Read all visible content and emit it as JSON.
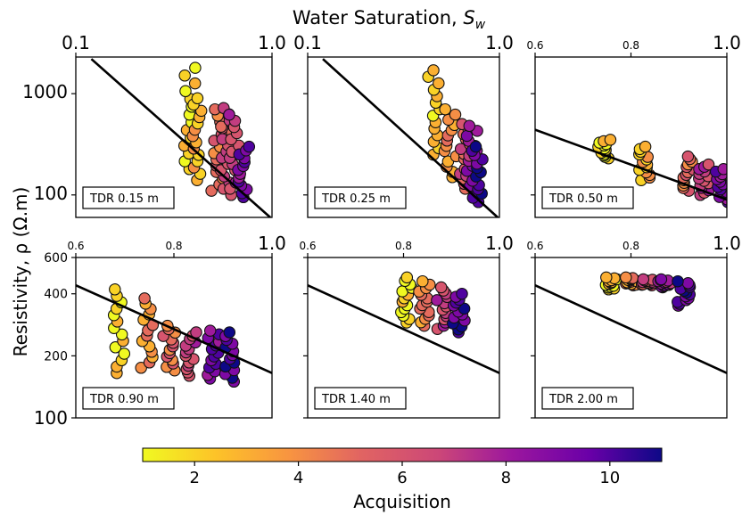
{
  "chart_data": {
    "type": "scatter",
    "top_axis_label": "Water Saturation, ",
    "top_axis_label_sym": "S",
    "top_axis_label_sub": "w",
    "ylabel": "Resistivity, ρ (Ω.m)",
    "colorbar": {
      "label": "Acquisition",
      "range": [
        1,
        11
      ],
      "ticks": [
        2,
        4,
        6,
        8,
        10
      ],
      "colormap": "plasma"
    },
    "panels": [
      {
        "label": "TDR 0.15 m",
        "x_scale": "log",
        "xlim": [
          0.1,
          1.0
        ],
        "x_ticks": [
          0.1,
          1.0
        ],
        "x_tick_labels": [
          "0.1",
          "1.0"
        ],
        "y_scale": "log",
        "ylim": [
          60,
          2300
        ],
        "y_ticks": [
          100,
          1000
        ],
        "y_tick_labels": [
          "100",
          "1000"
        ],
        "fit_line": [
          [
            0.12,
            2200
          ],
          [
            0.98,
            60
          ]
        ],
        "clusters": [
          {
            "x": 0.38,
            "y_min": 180,
            "y_max": 1800,
            "acq_start": 1
          },
          {
            "x": 0.42,
            "y_min": 140,
            "y_max": 900,
            "acq_start": 2
          },
          {
            "x": 0.525,
            "y_min": 110,
            "y_max": 700,
            "acq_start": 4
          },
          {
            "x": 0.59,
            "y_min": 115,
            "y_max": 720,
            "acq_start": 5
          },
          {
            "x": 0.65,
            "y_min": 100,
            "y_max": 620,
            "acq_start": 6
          },
          {
            "x": 0.72,
            "y_min": 95,
            "y_max": 300,
            "acq_start": 8
          }
        ]
      },
      {
        "label": "TDR 0.25 m",
        "x_scale": "log",
        "xlim": [
          0.1,
          1.0
        ],
        "x_ticks": [
          0.1,
          1.0
        ],
        "x_tick_labels": [
          "0.1",
          "1.0"
        ],
        "y_scale": "log",
        "ylim": [
          60,
          2300
        ],
        "y_ticks": [
          100,
          1000
        ],
        "y_tick_labels": [
          "",
          ""
        ],
        "fit_line": [
          [
            0.12,
            2200
          ],
          [
            0.98,
            60
          ]
        ],
        "clusters": [
          {
            "x": 0.455,
            "y_min": 250,
            "y_max": 1700,
            "acq_start": 1
          },
          {
            "x": 0.555,
            "y_min": 150,
            "y_max": 700,
            "acq_start": 3
          },
          {
            "x": 0.665,
            "y_min": 115,
            "y_max": 500,
            "acq_start": 5
          },
          {
            "x": 0.715,
            "y_min": 110,
            "y_max": 480,
            "acq_start": 7
          },
          {
            "x": 0.77,
            "y_min": 85,
            "y_max": 300,
            "acq_start": 9
          }
        ]
      },
      {
        "label": "TDR 0.50 m",
        "x_scale": "linear",
        "xlim": [
          0.6,
          1.0
        ],
        "x_ticks": [
          0.6,
          0.8,
          1.0
        ],
        "x_tick_labels": [
          "0.6",
          "0.8",
          "1.0"
        ],
        "y_scale": "log",
        "ylim": [
          60,
          2300
        ],
        "y_ticks": [
          100,
          1000
        ],
        "y_tick_labels": [
          "",
          ""
        ],
        "fit_line": [
          [
            0.6,
            440
          ],
          [
            1.0,
            90
          ]
        ],
        "clusters": [
          {
            "x": 0.745,
            "y_min": 230,
            "y_max": 350,
            "acq_start": 1
          },
          {
            "x": 0.83,
            "y_min": 140,
            "y_max": 300,
            "acq_start": 2
          },
          {
            "x": 0.92,
            "y_min": 110,
            "y_max": 240,
            "acq_start": 4
          },
          {
            "x": 0.955,
            "y_min": 100,
            "y_max": 200,
            "acq_start": 6
          },
          {
            "x": 0.99,
            "y_min": 85,
            "y_max": 180,
            "acq_start": 8
          }
        ]
      },
      {
        "label": "TDR 0.90 m",
        "x_scale": "linear",
        "xlim": [
          0.6,
          1.0
        ],
        "x_ticks": [
          0.6,
          0.8,
          1.0
        ],
        "x_tick_labels": [
          "0.6",
          "0.8",
          "1.0"
        ],
        "y_scale": "log",
        "ylim": [
          100,
          600
        ],
        "y_ticks": [
          100,
          200,
          400,
          600
        ],
        "y_tick_labels": [
          "100",
          "200",
          "400",
          "600"
        ],
        "fit_line": [
          [
            0.6,
            440
          ],
          [
            1.0,
            165
          ]
        ],
        "clusters": [
          {
            "x": 0.69,
            "y_min": 165,
            "y_max": 420,
            "acq_start": 1
          },
          {
            "x": 0.745,
            "y_min": 175,
            "y_max": 380,
            "acq_start": 3
          },
          {
            "x": 0.79,
            "y_min": 170,
            "y_max": 280,
            "acq_start": 4
          },
          {
            "x": 0.835,
            "y_min": 160,
            "y_max": 260,
            "acq_start": 6
          },
          {
            "x": 0.88,
            "y_min": 155,
            "y_max": 265,
            "acq_start": 8
          },
          {
            "x": 0.915,
            "y_min": 150,
            "y_max": 260,
            "acq_start": 9
          }
        ]
      },
      {
        "label": "TDR 1.40 m",
        "x_scale": "linear",
        "xlim": [
          0.6,
          1.0
        ],
        "x_ticks": [
          0.6,
          0.8,
          1.0
        ],
        "x_tick_labels": [
          "0.6",
          "0.8",
          "1.0"
        ],
        "y_scale": "log",
        "ylim": [
          100,
          600
        ],
        "y_ticks": [
          100,
          200,
          400,
          600
        ],
        "y_tick_labels": [
          "",
          "",
          "",
          ""
        ],
        "fit_line": [
          [
            0.6,
            440
          ],
          [
            1.0,
            165
          ]
        ],
        "clusters": [
          {
            "x": 0.805,
            "y_min": 290,
            "y_max": 480,
            "acq_start": 1
          },
          {
            "x": 0.845,
            "y_min": 280,
            "y_max": 460,
            "acq_start": 3
          },
          {
            "x": 0.88,
            "y_min": 270,
            "y_max": 430,
            "acq_start": 6
          },
          {
            "x": 0.915,
            "y_min": 260,
            "y_max": 400,
            "acq_start": 9
          }
        ]
      },
      {
        "label": "TDR 2.00 m",
        "x_scale": "linear",
        "xlim": [
          0.6,
          1.0
        ],
        "x_ticks": [
          0.6,
          0.8,
          1.0
        ],
        "x_tick_labels": [
          "0.6",
          "0.8",
          "1.0"
        ],
        "y_scale": "log",
        "ylim": [
          100,
          600
        ],
        "y_ticks": [
          100,
          200,
          400,
          600
        ],
        "y_tick_labels": [
          "",
          "",
          "",
          ""
        ],
        "fit_line": [
          [
            0.6,
            440
          ],
          [
            1.0,
            165
          ]
        ],
        "clusters": [
          {
            "x": 0.76,
            "y_min": 420,
            "y_max": 480,
            "acq_start": 1
          },
          {
            "x": 0.8,
            "y_min": 440,
            "y_max": 480,
            "acq_start": 3
          },
          {
            "x": 0.835,
            "y_min": 440,
            "y_max": 470,
            "acq_start": 5
          },
          {
            "x": 0.87,
            "y_min": 430,
            "y_max": 470,
            "acq_start": 7
          },
          {
            "x": 0.91,
            "y_min": 350,
            "y_max": 460,
            "acq_start": 9
          }
        ]
      }
    ]
  }
}
